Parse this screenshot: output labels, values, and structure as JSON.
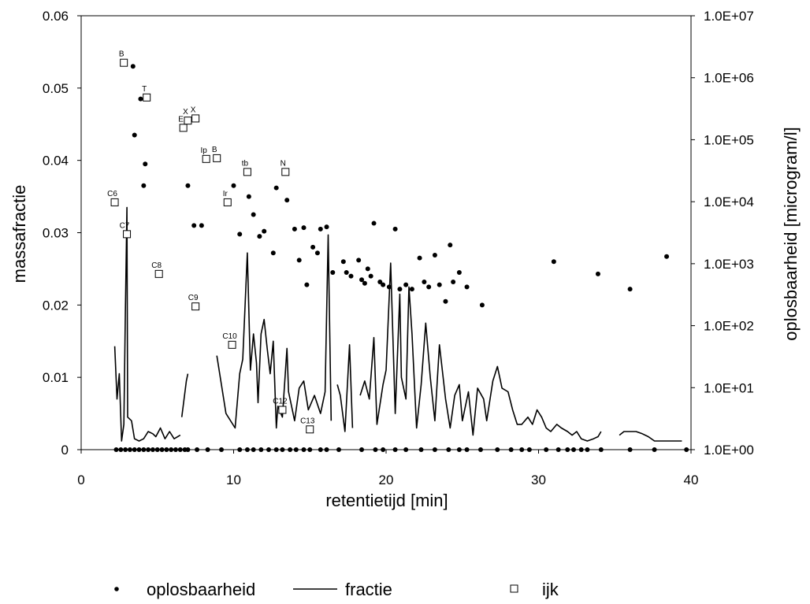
{
  "chart_data": {
    "type": "scatter+line",
    "xlabel": "retentietijd [min]",
    "ylabel_left": "massafractie",
    "ylabel_right": "oplosbaarheid [microgram/l]",
    "xlim": [
      0,
      40
    ],
    "ylim_left": [
      0,
      0.06
    ],
    "ylim_right": [
      1,
      10000000
    ],
    "right_axis_scale": "log",
    "x_ticks": [
      0,
      10,
      20,
      30,
      40
    ],
    "y_ticks_left": [
      "0",
      "0.01",
      "0.02",
      "0.03",
      "0.04",
      "0.05",
      "0.06"
    ],
    "y_ticks_right": [
      "1.0E+00",
      "1.0E+01",
      "1.0E+02",
      "1.0E+03",
      "1.0E+04",
      "1.0E+05",
      "1.0E+06",
      "1.0E+07"
    ],
    "grid": false,
    "legend_position": "bottom",
    "legend": [
      "oplosbaarheid",
      "fractie",
      "ijk"
    ],
    "series": [
      {
        "name": "oplosbaarheid",
        "style": "filled-marker",
        "axis": "right",
        "points": [
          [
            3.4,
            0.053
          ],
          [
            3.5,
            0.0435
          ],
          [
            3.9,
            0.0485
          ],
          [
            4.1,
            0.0365
          ],
          [
            4.2,
            0.0395
          ],
          [
            7.0,
            0.0365
          ],
          [
            7.4,
            0.031
          ],
          [
            7.9,
            0.031
          ],
          [
            9.6,
            0.034
          ],
          [
            10.0,
            0.0365
          ],
          [
            10.4,
            0.0298
          ],
          [
            11.0,
            0.035
          ],
          [
            11.3,
            0.0325
          ],
          [
            11.7,
            0.0295
          ],
          [
            12.0,
            0.0302
          ],
          [
            12.6,
            0.0272
          ],
          [
            12.8,
            0.0362
          ],
          [
            13.5,
            0.0345
          ],
          [
            14.0,
            0.0305
          ],
          [
            14.3,
            0.0262
          ],
          [
            14.6,
            0.0307
          ],
          [
            14.8,
            0.0228
          ],
          [
            15.2,
            0.028
          ],
          [
            15.5,
            0.0272
          ],
          [
            15.7,
            0.0305
          ],
          [
            16.1,
            0.0308
          ],
          [
            16.5,
            0.0245
          ],
          [
            17.2,
            0.026
          ],
          [
            17.4,
            0.0245
          ],
          [
            17.7,
            0.024
          ],
          [
            18.2,
            0.0262
          ],
          [
            18.4,
            0.0235
          ],
          [
            18.6,
            0.023
          ],
          [
            18.8,
            0.025
          ],
          [
            19.0,
            0.024
          ],
          [
            19.2,
            0.0313
          ],
          [
            19.6,
            0.0232
          ],
          [
            19.8,
            0.0228
          ],
          [
            20.2,
            0.0225
          ],
          [
            20.6,
            0.0305
          ],
          [
            20.9,
            0.0222
          ],
          [
            21.3,
            0.0228
          ],
          [
            21.7,
            0.0222
          ],
          [
            22.2,
            0.0265
          ],
          [
            22.5,
            0.0232
          ],
          [
            22.8,
            0.0225
          ],
          [
            23.2,
            0.0269
          ],
          [
            23.5,
            0.0228
          ],
          [
            23.9,
            0.0205
          ],
          [
            24.2,
            0.0283
          ],
          [
            24.4,
            0.0232
          ],
          [
            24.8,
            0.0245
          ],
          [
            25.3,
            0.0225
          ],
          [
            26.3,
            0.02
          ],
          [
            31.0,
            0.026
          ],
          [
            33.9,
            0.0243
          ],
          [
            36.0,
            0.0222
          ],
          [
            38.4,
            0.0267
          ],
          [
            2.3,
            0
          ],
          [
            2.6,
            0
          ],
          [
            2.9,
            0
          ],
          [
            3.2,
            0
          ],
          [
            3.5,
            0
          ],
          [
            3.8,
            0
          ],
          [
            4.1,
            0
          ],
          [
            4.4,
            0
          ],
          [
            4.7,
            0
          ],
          [
            5.0,
            0
          ],
          [
            5.3,
            0
          ],
          [
            5.6,
            0
          ],
          [
            5.9,
            0
          ],
          [
            6.2,
            0
          ],
          [
            6.5,
            0
          ],
          [
            6.8,
            0
          ],
          [
            7.0,
            0
          ],
          [
            7.6,
            0
          ],
          [
            8.3,
            0
          ],
          [
            9.2,
            0
          ],
          [
            10.4,
            0
          ],
          [
            10.9,
            0
          ],
          [
            11.3,
            0
          ],
          [
            11.8,
            0
          ],
          [
            12.3,
            0
          ],
          [
            12.8,
            0
          ],
          [
            13.2,
            0
          ],
          [
            13.7,
            0
          ],
          [
            14.1,
            0
          ],
          [
            14.6,
            0
          ],
          [
            15.0,
            0
          ],
          [
            15.7,
            0
          ],
          [
            16.1,
            0
          ],
          [
            16.9,
            0
          ],
          [
            18.4,
            0
          ],
          [
            19.3,
            0
          ],
          [
            19.8,
            0
          ],
          [
            20.6,
            0
          ],
          [
            21.3,
            0
          ],
          [
            22.3,
            0
          ],
          [
            23.2,
            0
          ],
          [
            24.1,
            0
          ],
          [
            24.8,
            0
          ],
          [
            25.3,
            0
          ],
          [
            26.2,
            0
          ],
          [
            27.3,
            0
          ],
          [
            28.2,
            0
          ],
          [
            28.9,
            0
          ],
          [
            29.4,
            0
          ],
          [
            30.5,
            0
          ],
          [
            31.3,
            0
          ],
          [
            31.9,
            0
          ],
          [
            32.3,
            0
          ],
          [
            32.8,
            0
          ],
          [
            33.2,
            0
          ],
          [
            34.1,
            0
          ],
          [
            36.0,
            0
          ],
          [
            37.6,
            0
          ],
          [
            39.7,
            0
          ]
        ]
      },
      {
        "name": "fractie",
        "style": "line",
        "axis": "left",
        "segments": [
          [
            [
              2.2,
              0.0143
            ],
            [
              2.35,
              0.007
            ],
            [
              2.5,
              0.0105
            ],
            [
              2.65,
              0.0012
            ],
            [
              2.8,
              0.0035
            ],
            [
              2.9,
              0.019
            ],
            [
              3.0,
              0.0335
            ],
            [
              3.05,
              0.0045
            ],
            [
              3.3,
              0.004
            ],
            [
              3.5,
              0.0015
            ],
            [
              3.8,
              0.0012
            ],
            [
              4.1,
              0.0015
            ],
            [
              4.4,
              0.0025
            ],
            [
              4.7,
              0.0022
            ],
            [
              4.9,
              0.0018
            ],
            [
              5.2,
              0.003
            ],
            [
              5.5,
              0.0015
            ],
            [
              5.8,
              0.0025
            ],
            [
              6.1,
              0.0015
            ],
            [
              6.5,
              0.002
            ]
          ],
          [
            [
              6.6,
              0.0045
            ],
            [
              6.9,
              0.0095
            ],
            [
              7.0,
              0.0105
            ]
          ],
          [
            [
              8.9,
              0.013
            ],
            [
              9.2,
              0.009
            ],
            [
              9.5,
              0.005
            ],
            [
              10.1,
              0.003
            ],
            [
              10.4,
              0.0105
            ],
            [
              10.6,
              0.0125
            ],
            [
              10.9,
              0.0272
            ],
            [
              11.1,
              0.011
            ],
            [
              11.3,
              0.016
            ],
            [
              11.5,
              0.012
            ],
            [
              11.6,
              0.0065
            ],
            [
              11.8,
              0.016
            ],
            [
              12.0,
              0.018
            ],
            [
              12.2,
              0.014
            ],
            [
              12.4,
              0.0105
            ],
            [
              12.6,
              0.015
            ],
            [
              12.8,
              0.003
            ],
            [
              12.9,
              0.006
            ],
            [
              13.0,
              0.0055
            ],
            [
              13.2,
              0.0045
            ],
            [
              13.5,
              0.014
            ],
            [
              13.6,
              0.008
            ],
            [
              14.0,
              0.004
            ],
            [
              14.3,
              0.0085
            ],
            [
              14.6,
              0.0095
            ],
            [
              14.9,
              0.0055
            ],
            [
              15.3,
              0.0075
            ],
            [
              15.7,
              0.005
            ],
            [
              16.0,
              0.008
            ],
            [
              16.2,
              0.0297
            ],
            [
              16.4,
              0.004
            ]
          ],
          [
            [
              16.8,
              0.009
            ],
            [
              17.0,
              0.0075
            ],
            [
              17.3,
              0.0025
            ],
            [
              17.6,
              0.0145
            ],
            [
              17.8,
              0.003
            ]
          ],
          [
            [
              18.3,
              0.0075
            ],
            [
              18.6,
              0.0095
            ],
            [
              18.9,
              0.007
            ],
            [
              19.2,
              0.0155
            ],
            [
              19.4,
              0.0035
            ],
            [
              19.8,
              0.009
            ],
            [
              20.0,
              0.011
            ],
            [
              20.3,
              0.0258
            ],
            [
              20.6,
              0.005
            ],
            [
              20.9,
              0.0215
            ],
            [
              21.0,
              0.01
            ],
            [
              21.3,
              0.007
            ],
            [
              21.5,
              0.0225
            ],
            [
              21.7,
              0.016
            ],
            [
              22.0,
              0.003
            ],
            [
              22.3,
              0.009
            ],
            [
              22.6,
              0.0175
            ],
            [
              22.9,
              0.01
            ],
            [
              23.2,
              0.004
            ],
            [
              23.5,
              0.0145
            ],
            [
              23.9,
              0.007
            ],
            [
              24.2,
              0.003
            ],
            [
              24.5,
              0.0075
            ],
            [
              24.8,
              0.009
            ],
            [
              25.0,
              0.004
            ],
            [
              25.4,
              0.008
            ],
            [
              25.7,
              0.002
            ],
            [
              26.0,
              0.0085
            ],
            [
              26.4,
              0.007
            ],
            [
              26.6,
              0.004
            ],
            [
              27.0,
              0.0095
            ],
            [
              27.3,
              0.0115
            ],
            [
              27.6,
              0.0085
            ],
            [
              28.0,
              0.008
            ],
            [
              28.3,
              0.0055
            ],
            [
              28.6,
              0.0035
            ],
            [
              28.9,
              0.0035
            ],
            [
              29.3,
              0.0045
            ],
            [
              29.6,
              0.0035
            ],
            [
              29.9,
              0.0055
            ],
            [
              30.2,
              0.0045
            ],
            [
              30.5,
              0.003
            ],
            [
              30.8,
              0.0025
            ],
            [
              31.2,
              0.0035
            ],
            [
              31.5,
              0.003
            ],
            [
              31.9,
              0.0025
            ],
            [
              32.2,
              0.002
            ],
            [
              32.5,
              0.0025
            ],
            [
              32.8,
              0.0015
            ],
            [
              33.2,
              0.0012
            ],
            [
              33.6,
              0.0015
            ],
            [
              33.9,
              0.0018
            ],
            [
              34.1,
              0.0025
            ]
          ],
          [
            [
              35.3,
              0.002
            ],
            [
              35.6,
              0.0025
            ],
            [
              36.0,
              0.0025
            ],
            [
              36.4,
              0.0025
            ],
            [
              36.8,
              0.0022
            ],
            [
              37.2,
              0.0018
            ],
            [
              37.6,
              0.0012
            ],
            [
              38.0,
              0.0012
            ],
            [
              38.6,
              0.0012
            ],
            [
              39.4,
              0.0012
            ]
          ]
        ]
      },
      {
        "name": "ijk",
        "style": "open-square",
        "axis": "right",
        "points": [
          {
            "x": 2.8,
            "y": 0.0535,
            "label": "B"
          },
          {
            "x": 4.3,
            "y": 0.0487,
            "label": "T"
          },
          {
            "x": 6.7,
            "y": 0.0445,
            "label": "E"
          },
          {
            "x": 7.0,
            "y": 0.0455,
            "label": "X"
          },
          {
            "x": 7.5,
            "y": 0.0458,
            "label": "X"
          },
          {
            "x": 8.2,
            "y": 0.0402,
            "label": "Ip"
          },
          {
            "x": 8.9,
            "y": 0.0403,
            "label": "B"
          },
          {
            "x": 2.2,
            "y": 0.0342,
            "label": "C6"
          },
          {
            "x": 3.0,
            "y": 0.0298,
            "label": "C7"
          },
          {
            "x": 5.1,
            "y": 0.0243,
            "label": "C8"
          },
          {
            "x": 7.5,
            "y": 0.0198,
            "label": "C9"
          },
          {
            "x": 9.6,
            "y": 0.0342,
            "label": "Ir"
          },
          {
            "x": 9.9,
            "y": 0.0145,
            "label": "C10"
          },
          {
            "x": 10.9,
            "y": 0.0384,
            "label": "tb"
          },
          {
            "x": 13.4,
            "y": 0.0384,
            "label": "N"
          },
          {
            "x": 13.2,
            "y": 0.0055,
            "label": "C12"
          },
          {
            "x": 15.0,
            "y": 0.0028,
            "label": "C13"
          }
        ]
      }
    ]
  }
}
